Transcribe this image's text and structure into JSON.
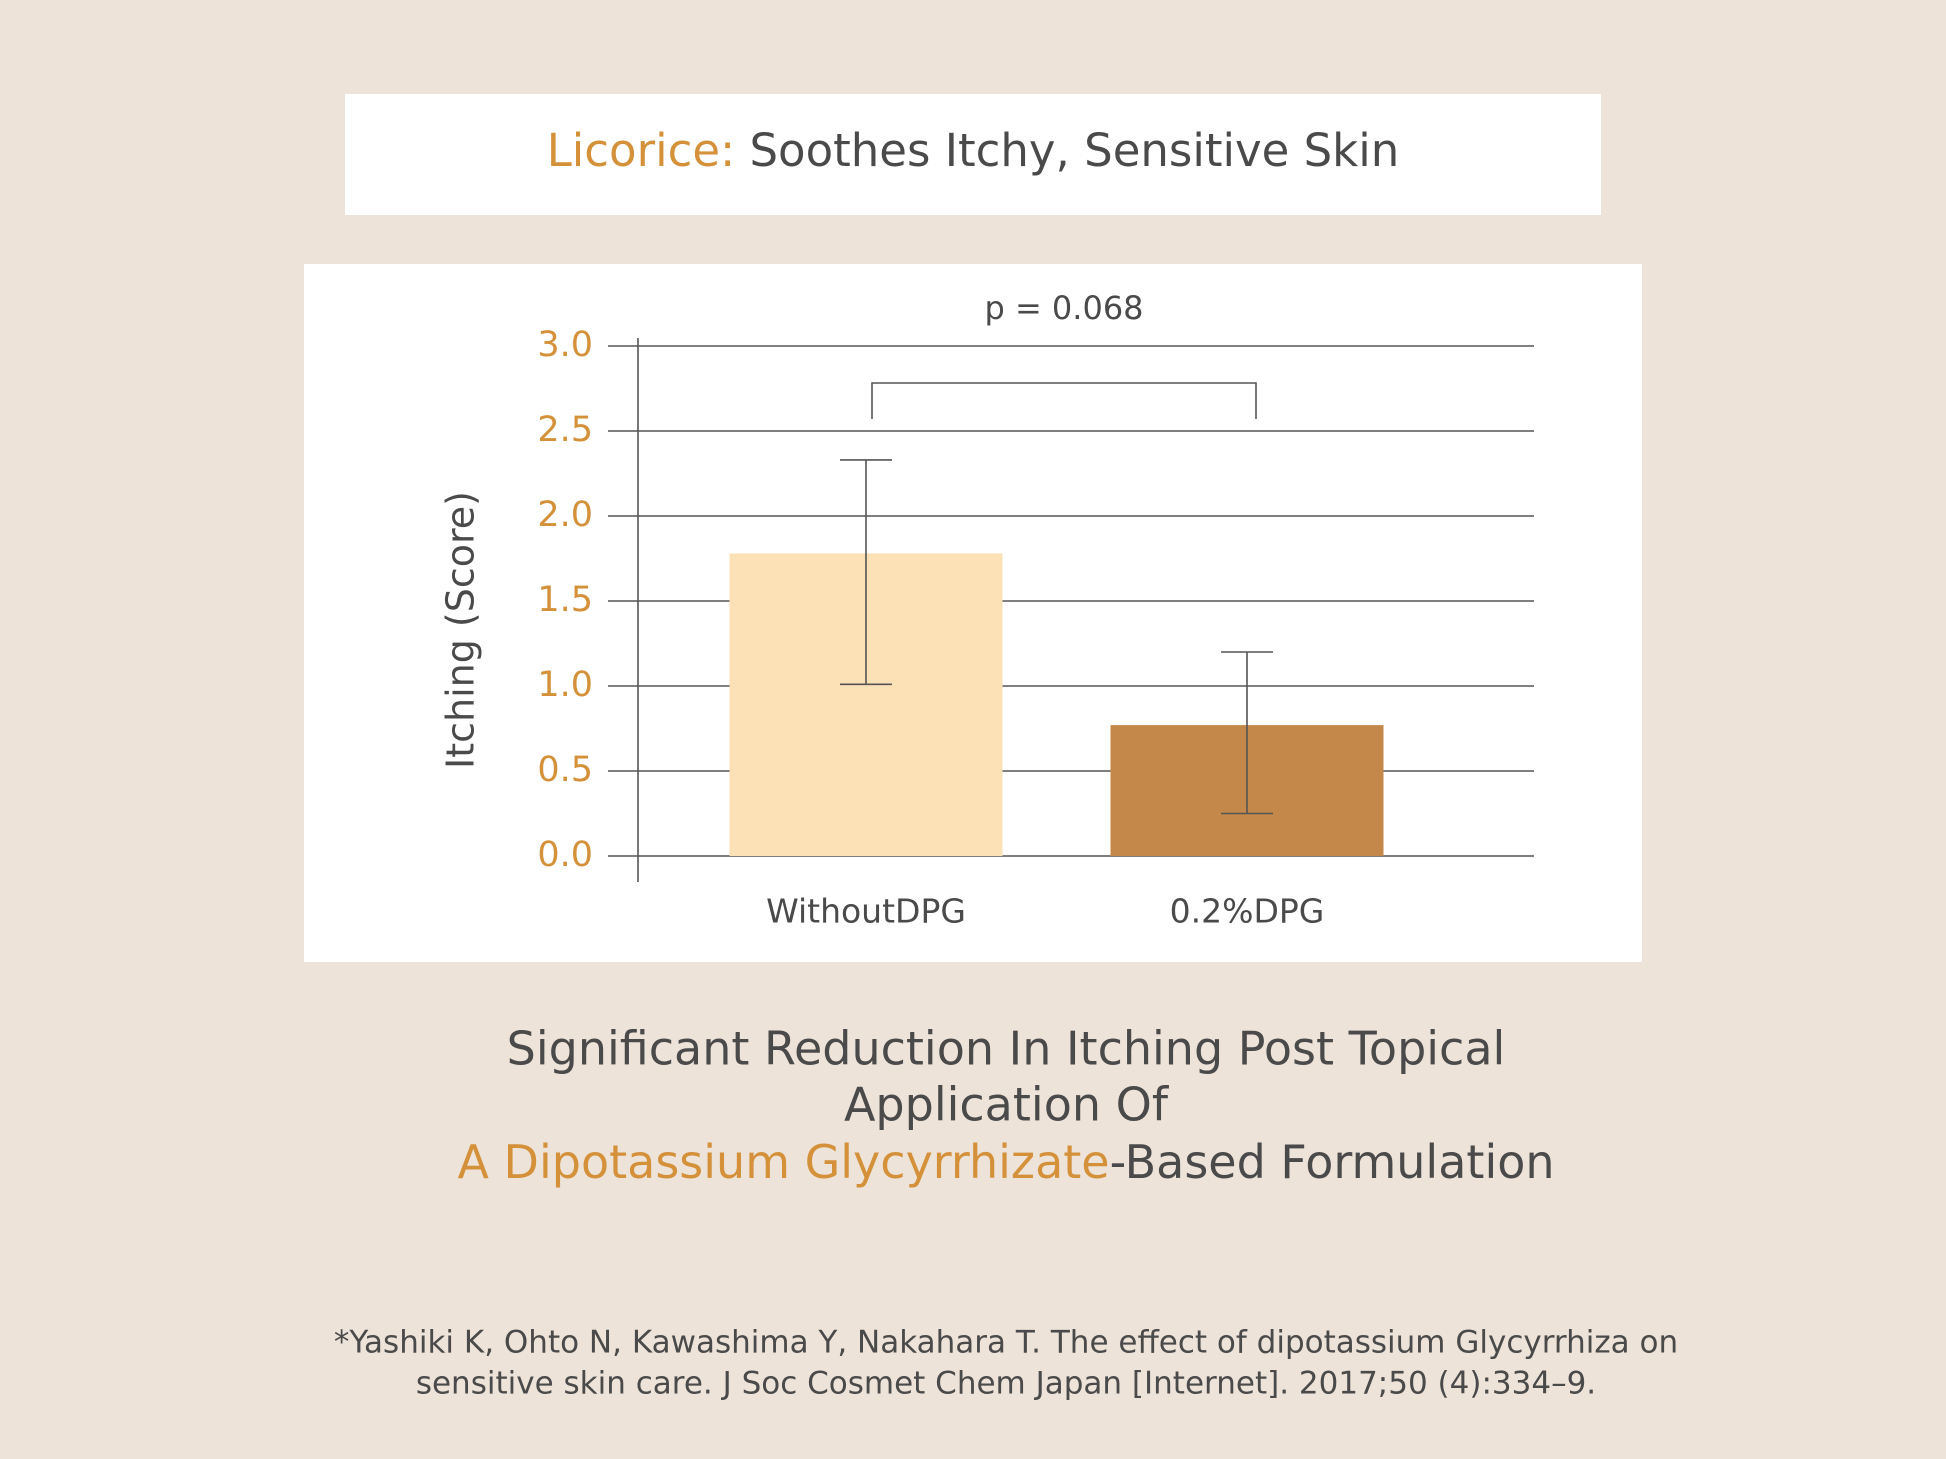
{
  "header": {
    "title_highlight": "Licorice:",
    "title": "Soothes Itchy, Sensitive Skin"
  },
  "chart_data": {
    "type": "bar",
    "annotation": "p = 0.068",
    "y_label": "Itching (Score)",
    "categories": [
      "WithoutDPG",
      "0.2%DPG"
    ],
    "values": [
      1.78,
      0.77
    ],
    "errors_low": [
      0.77,
      0.52
    ],
    "errors_high": [
      0.55,
      0.43
    ],
    "colors": [
      "#fce0b6",
      "#c4884a"
    ],
    "ylim": [
      0,
      3
    ],
    "yticks": [
      {
        "value": 0,
        "label": "0.0"
      },
      {
        "value": 0.5,
        "label": "0.5"
      },
      {
        "value": 1,
        "label": "1.0"
      },
      {
        "value": 1.5,
        "label": "1.5"
      },
      {
        "value": 2,
        "label": "2.0"
      },
      {
        "value": 2.5,
        "label": "2.5"
      },
      {
        "value": 3,
        "label": "3.0"
      }
    ],
    "grid": true
  },
  "caption": {
    "line1": "Significant Reduction In Itching Post Topical",
    "line2": "Application Of",
    "line3_highlight": "A Dipotassium Glycyrrhizate",
    "line3": "-Based Formulation"
  },
  "reference": {
    "line1": "*Yashiki K, Ohto N, Kawashima Y, Nakahara T. The effect of dipotassium Glycyrrhiza on",
    "line2": "sensitive skin care. J Soc Cosmet Chem Japan [Internet]. 2017;50 (4):334–9."
  }
}
